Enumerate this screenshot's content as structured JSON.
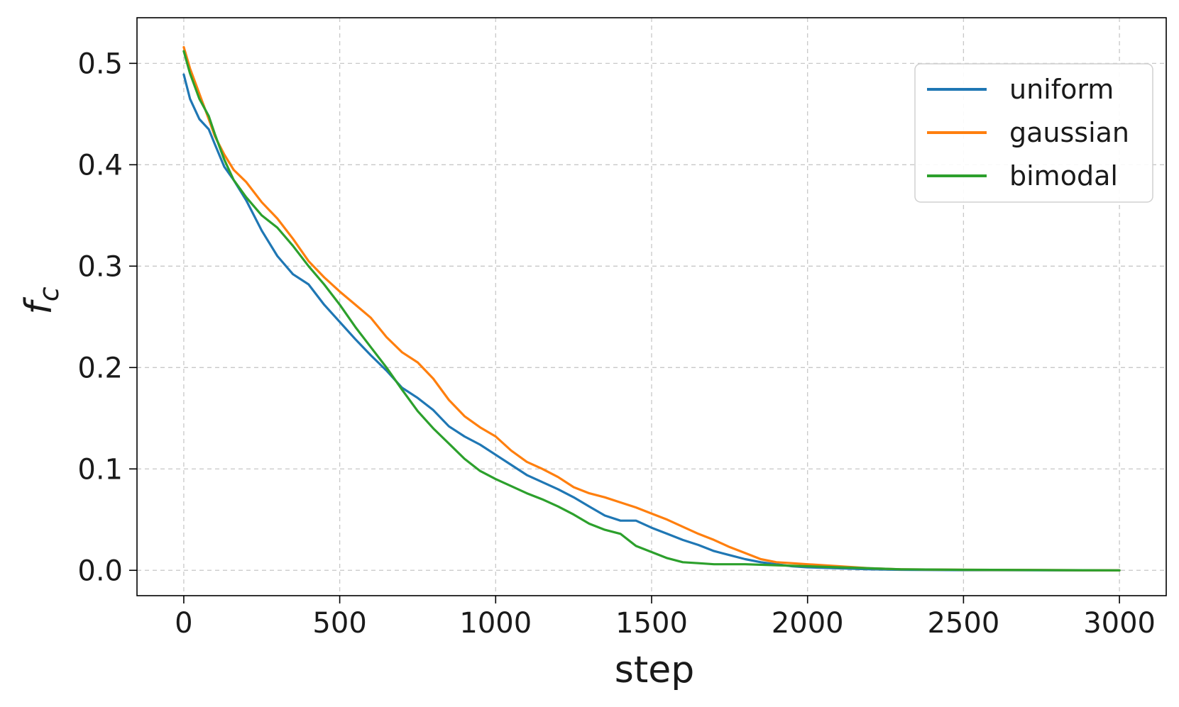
{
  "chart_data": {
    "type": "line",
    "title": "",
    "xlabel": "step",
    "ylabel_base": "f",
    "ylabel_sub": "c",
    "xlim": [
      -150,
      3150
    ],
    "ylim": [
      -0.025,
      0.545
    ],
    "xticks": [
      0,
      500,
      1000,
      1500,
      2000,
      2500,
      3000
    ],
    "xtick_labels": [
      "0",
      "500",
      "1000",
      "1500",
      "2000",
      "2500",
      "3000"
    ],
    "yticks": [
      0.0,
      0.1,
      0.2,
      0.3,
      0.4,
      0.5
    ],
    "ytick_labels": [
      "0.0",
      "0.1",
      "0.2",
      "0.3",
      "0.4",
      "0.5"
    ],
    "grid": true,
    "legend_position": "top-right",
    "series": [
      {
        "name": "uniform",
        "color": "#1f77b4",
        "points": [
          [
            0,
            0.489
          ],
          [
            20,
            0.465
          ],
          [
            50,
            0.445
          ],
          [
            80,
            0.435
          ],
          [
            100,
            0.42
          ],
          [
            130,
            0.398
          ],
          [
            160,
            0.385
          ],
          [
            200,
            0.365
          ],
          [
            250,
            0.335
          ],
          [
            300,
            0.31
          ],
          [
            350,
            0.292
          ],
          [
            400,
            0.282
          ],
          [
            450,
            0.262
          ],
          [
            500,
            0.245
          ],
          [
            550,
            0.228
          ],
          [
            600,
            0.212
          ],
          [
            650,
            0.197
          ],
          [
            700,
            0.18
          ],
          [
            750,
            0.17
          ],
          [
            800,
            0.158
          ],
          [
            850,
            0.142
          ],
          [
            900,
            0.132
          ],
          [
            950,
            0.124
          ],
          [
            1000,
            0.114
          ],
          [
            1050,
            0.104
          ],
          [
            1100,
            0.094
          ],
          [
            1150,
            0.087
          ],
          [
            1200,
            0.08
          ],
          [
            1250,
            0.072
          ],
          [
            1300,
            0.063
          ],
          [
            1350,
            0.054
          ],
          [
            1400,
            0.049
          ],
          [
            1450,
            0.049
          ],
          [
            1500,
            0.042
          ],
          [
            1550,
            0.036
          ],
          [
            1600,
            0.03
          ],
          [
            1650,
            0.025
          ],
          [
            1700,
            0.019
          ],
          [
            1750,
            0.015
          ],
          [
            1800,
            0.011
          ],
          [
            1850,
            0.008
          ],
          [
            1900,
            0.006
          ],
          [
            1950,
            0.004
          ],
          [
            2000,
            0.003
          ],
          [
            2100,
            0.002
          ],
          [
            2200,
            0.001
          ],
          [
            2300,
            0.0005
          ],
          [
            2500,
            0.0002
          ],
          [
            3000,
            0.0
          ]
        ]
      },
      {
        "name": "gaussian",
        "color": "#ff7f0e",
        "points": [
          [
            0,
            0.516
          ],
          [
            20,
            0.495
          ],
          [
            50,
            0.47
          ],
          [
            80,
            0.445
          ],
          [
            100,
            0.428
          ],
          [
            130,
            0.41
          ],
          [
            160,
            0.395
          ],
          [
            200,
            0.383
          ],
          [
            250,
            0.363
          ],
          [
            300,
            0.347
          ],
          [
            350,
            0.327
          ],
          [
            400,
            0.305
          ],
          [
            450,
            0.289
          ],
          [
            500,
            0.275
          ],
          [
            550,
            0.262
          ],
          [
            600,
            0.249
          ],
          [
            650,
            0.23
          ],
          [
            700,
            0.215
          ],
          [
            750,
            0.205
          ],
          [
            800,
            0.189
          ],
          [
            850,
            0.168
          ],
          [
            900,
            0.152
          ],
          [
            950,
            0.141
          ],
          [
            1000,
            0.132
          ],
          [
            1050,
            0.118
          ],
          [
            1100,
            0.107
          ],
          [
            1150,
            0.1
          ],
          [
            1200,
            0.092
          ],
          [
            1250,
            0.082
          ],
          [
            1300,
            0.076
          ],
          [
            1350,
            0.072
          ],
          [
            1400,
            0.067
          ],
          [
            1450,
            0.062
          ],
          [
            1500,
            0.056
          ],
          [
            1550,
            0.05
          ],
          [
            1600,
            0.043
          ],
          [
            1650,
            0.036
          ],
          [
            1700,
            0.03
          ],
          [
            1750,
            0.023
          ],
          [
            1800,
            0.017
          ],
          [
            1850,
            0.011
          ],
          [
            1900,
            0.008
          ],
          [
            1950,
            0.007
          ],
          [
            2000,
            0.006
          ],
          [
            2100,
            0.004
          ],
          [
            2200,
            0.002
          ],
          [
            2300,
            0.001
          ],
          [
            2500,
            0.0005
          ],
          [
            3000,
            0.0
          ]
        ]
      },
      {
        "name": "bimodal",
        "color": "#2ca02c",
        "points": [
          [
            0,
            0.512
          ],
          [
            20,
            0.49
          ],
          [
            50,
            0.465
          ],
          [
            80,
            0.448
          ],
          [
            100,
            0.43
          ],
          [
            130,
            0.405
          ],
          [
            160,
            0.385
          ],
          [
            200,
            0.368
          ],
          [
            250,
            0.35
          ],
          [
            300,
            0.338
          ],
          [
            350,
            0.32
          ],
          [
            400,
            0.3
          ],
          [
            450,
            0.282
          ],
          [
            500,
            0.262
          ],
          [
            550,
            0.24
          ],
          [
            600,
            0.22
          ],
          [
            650,
            0.2
          ],
          [
            700,
            0.178
          ],
          [
            750,
            0.157
          ],
          [
            800,
            0.14
          ],
          [
            850,
            0.125
          ],
          [
            900,
            0.11
          ],
          [
            950,
            0.098
          ],
          [
            1000,
            0.09
          ],
          [
            1050,
            0.083
          ],
          [
            1100,
            0.076
          ],
          [
            1150,
            0.07
          ],
          [
            1200,
            0.063
          ],
          [
            1250,
            0.055
          ],
          [
            1300,
            0.046
          ],
          [
            1350,
            0.04
          ],
          [
            1400,
            0.036
          ],
          [
            1450,
            0.024
          ],
          [
            1500,
            0.018
          ],
          [
            1550,
            0.012
          ],
          [
            1600,
            0.008
          ],
          [
            1650,
            0.007
          ],
          [
            1700,
            0.006
          ],
          [
            1750,
            0.006
          ],
          [
            1800,
            0.006
          ],
          [
            1900,
            0.005
          ],
          [
            2000,
            0.004
          ],
          [
            2100,
            0.003
          ],
          [
            2200,
            0.002
          ],
          [
            2300,
            0.001
          ],
          [
            2500,
            0.0005
          ],
          [
            3000,
            0.0
          ]
        ]
      }
    ]
  }
}
